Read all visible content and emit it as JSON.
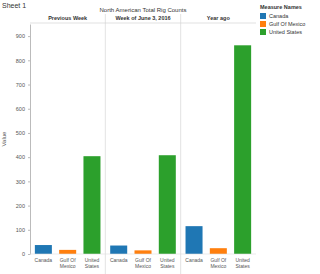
{
  "chart_data": {
    "type": "bar",
    "title": "Sheet 1",
    "subtitle": "North American Total Rig Counts",
    "y_label": "Value",
    "legend_title": "Measure Names",
    "categories": [
      "Previous Week",
      "Week of June 3, 2016",
      "Year ago"
    ],
    "series": [
      {
        "name": "Canada",
        "color": "#1f77b4",
        "values": [
          37,
          35,
          115
        ]
      },
      {
        "name": "Gulf Of Mexico",
        "color": "#ff7f0e",
        "values": [
          17,
          15,
          24
        ]
      },
      {
        "name": "United States",
        "color": "#2ca02c",
        "values": [
          404,
          408,
          862
        ]
      }
    ],
    "ylim": [
      0,
      950
    ],
    "yticks": [
      0,
      100,
      200,
      300,
      400,
      500,
      600,
      700,
      800,
      900
    ],
    "grid": false,
    "legend": "top-right"
  }
}
